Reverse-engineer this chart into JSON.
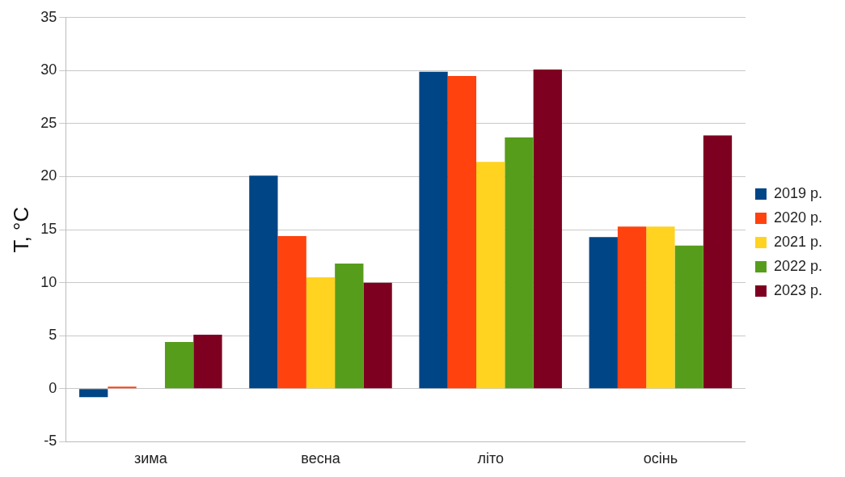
{
  "chart_data": {
    "type": "bar",
    "ylabel": "T, °C",
    "categories": [
      "зима",
      "весна",
      "літо",
      "осінь"
    ],
    "series": [
      {
        "name": "2019 р.",
        "color": "#004586",
        "values": [
          -0.8,
          20.1,
          29.9,
          14.3
        ]
      },
      {
        "name": "2020 р.",
        "color": "#ff420e",
        "values": [
          0.2,
          14.4,
          29.5,
          15.3
        ]
      },
      {
        "name": "2021 р.",
        "color": "#ffd320",
        "values": [
          null,
          10.5,
          21.4,
          15.3
        ]
      },
      {
        "name": "2022 р.",
        "color": "#579d1c",
        "values": [
          4.4,
          11.8,
          23.7,
          13.5
        ]
      },
      {
        "name": "2023 р.",
        "color": "#7e0021",
        "values": [
          5.1,
          10.0,
          30.1,
          23.9
        ]
      }
    ],
    "ylim": [
      -5,
      35
    ],
    "yticks": [
      -5,
      0,
      5,
      10,
      15,
      20,
      25,
      30,
      35
    ],
    "grid": "y",
    "legend": "right"
  }
}
